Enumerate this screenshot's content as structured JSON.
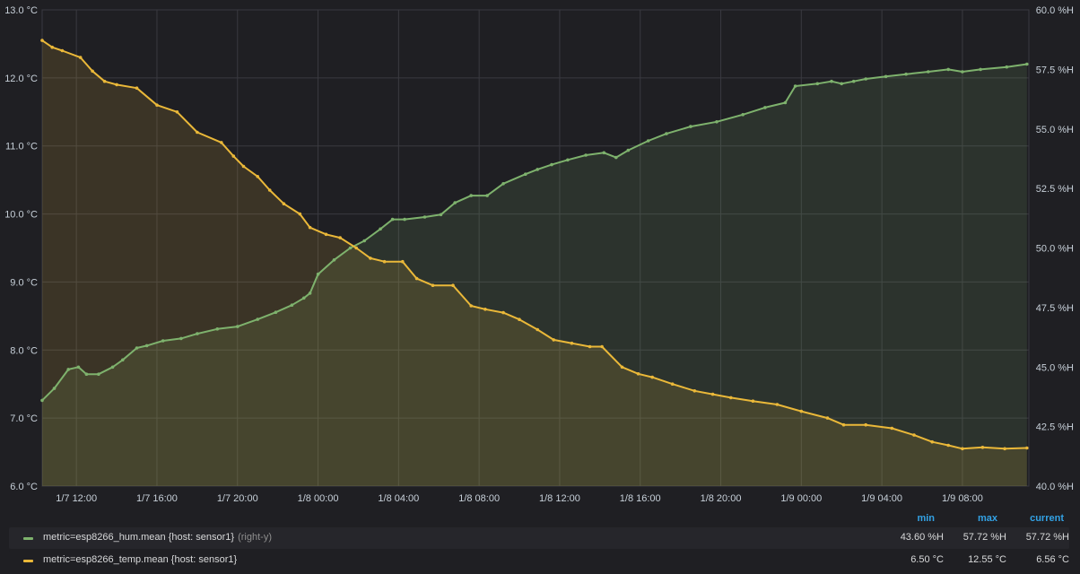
{
  "chart_data": {
    "type": "area",
    "x_tick_labels": [
      "1/7 12:00",
      "1/7 16:00",
      "1/7 20:00",
      "1/8 00:00",
      "1/8 04:00",
      "1/8 08:00",
      "1/8 12:00",
      "1/8 16:00",
      "1/8 20:00",
      "1/9 00:00",
      "1/9 04:00",
      "1/9 08:00"
    ],
    "x_tick_hours": [
      12,
      16,
      20,
      24,
      28,
      32,
      36,
      40,
      44,
      48,
      52,
      56
    ],
    "x_range_hours": [
      10.3,
      59.3
    ],
    "x_note": "x values are hours after 1/7 00:00",
    "y_left": {
      "ticks": [
        "6.0 °C",
        "7.0 °C",
        "8.0 °C",
        "9.0 °C",
        "10.0 °C",
        "11.0 °C",
        "12.0 °C",
        "13.0 °C"
      ],
      "range": [
        6,
        13
      ]
    },
    "y_right": {
      "ticks": [
        "40.0 %H",
        "42.5 %H",
        "45.0 %H",
        "47.5 %H",
        "50.0 %H",
        "52.5 %H",
        "55.0 %H",
        "57.5 %H",
        "60.0 %H"
      ],
      "range": [
        40,
        60
      ]
    },
    "grid": true,
    "series": [
      {
        "name": "metric=esp8266_hum.mean {host: sensor1}",
        "axis": "right",
        "color": "#7eb26d",
        "x": [
          10.3,
          10.9,
          11.6,
          12.1,
          12.5,
          13.1,
          13.8,
          14.3,
          15.0,
          15.5,
          16.3,
          17.2,
          18.0,
          19.0,
          20.0,
          21.0,
          21.9,
          22.7,
          23.3,
          23.6,
          24.0,
          24.8,
          25.6,
          26.3,
          27.1,
          27.7,
          28.3,
          29.3,
          30.1,
          30.8,
          31.6,
          32.4,
          33.2,
          34.3,
          34.9,
          35.6,
          36.4,
          37.3,
          38.2,
          38.8,
          39.4,
          40.4,
          41.3,
          42.5,
          43.8,
          45.1,
          46.2,
          47.2,
          47.7,
          48.8,
          49.5,
          50.0,
          50.6,
          51.2,
          52.2,
          53.2,
          54.3,
          55.3,
          56.0,
          56.9,
          58.2,
          59.2
        ],
        "values": [
          43.6,
          44.1,
          44.9,
          45.0,
          44.7,
          44.7,
          45.0,
          45.3,
          45.8,
          45.9,
          46.1,
          46.2,
          46.4,
          46.6,
          46.7,
          47.0,
          47.3,
          47.6,
          47.9,
          48.1,
          48.9,
          49.5,
          50.0,
          50.3,
          50.8,
          51.2,
          51.2,
          51.3,
          51.4,
          51.9,
          52.2,
          52.2,
          52.7,
          53.1,
          53.3,
          53.5,
          53.7,
          53.9,
          54.0,
          53.8,
          54.1,
          54.5,
          54.8,
          55.1,
          55.3,
          55.6,
          55.9,
          56.1,
          56.8,
          56.9,
          57.0,
          56.9,
          57.0,
          57.1,
          57.2,
          57.3,
          57.4,
          57.5,
          57.4,
          57.5,
          57.6,
          57.72
        ]
      },
      {
        "name": "metric=esp8266_temp.mean {host: sensor1}",
        "axis": "left",
        "color": "#eab839",
        "x": [
          10.3,
          10.8,
          11.3,
          12.2,
          12.8,
          13.4,
          14.0,
          15.0,
          16.0,
          17.0,
          18.0,
          19.2,
          19.8,
          20.3,
          21.0,
          21.6,
          22.3,
          23.1,
          23.6,
          24.4,
          25.1,
          25.9,
          26.6,
          27.3,
          28.2,
          28.9,
          29.7,
          30.7,
          31.6,
          32.3,
          33.2,
          34.0,
          34.9,
          35.7,
          36.6,
          37.5,
          38.1,
          39.1,
          39.9,
          40.6,
          41.6,
          42.7,
          43.6,
          44.5,
          45.6,
          46.8,
          48.0,
          49.3,
          50.1,
          51.2,
          52.5,
          53.6,
          54.5,
          55.3,
          56.0,
          57.0,
          58.1,
          59.2
        ],
        "values": [
          12.55,
          12.45,
          12.4,
          12.3,
          12.1,
          11.95,
          11.9,
          11.85,
          11.6,
          11.5,
          11.2,
          11.05,
          10.85,
          10.7,
          10.55,
          10.35,
          10.15,
          10.0,
          9.8,
          9.7,
          9.65,
          9.5,
          9.35,
          9.3,
          9.3,
          9.05,
          8.95,
          8.95,
          8.65,
          8.6,
          8.55,
          8.45,
          8.3,
          8.15,
          8.1,
          8.05,
          8.05,
          7.75,
          7.65,
          7.6,
          7.5,
          7.4,
          7.35,
          7.3,
          7.25,
          7.2,
          7.1,
          7.0,
          6.9,
          6.9,
          6.85,
          6.75,
          6.65,
          6.6,
          6.55,
          6.57,
          6.55,
          6.56
        ]
      }
    ]
  },
  "legend": {
    "headers": {
      "min": "min",
      "max": "max",
      "current": "current"
    },
    "rows": [
      {
        "label": "metric=esp8266_hum.mean {host: sensor1}",
        "axis_note": "(right-y)",
        "color": "#7eb26d",
        "min": "43.60 %H",
        "max": "57.72 %H",
        "current": "57.72 %H"
      },
      {
        "label": "metric=esp8266_temp.mean {host: sensor1}",
        "axis_note": "",
        "color": "#eab839",
        "min": "6.50 °C",
        "max": "12.55 °C",
        "current": "6.56 °C"
      }
    ]
  }
}
